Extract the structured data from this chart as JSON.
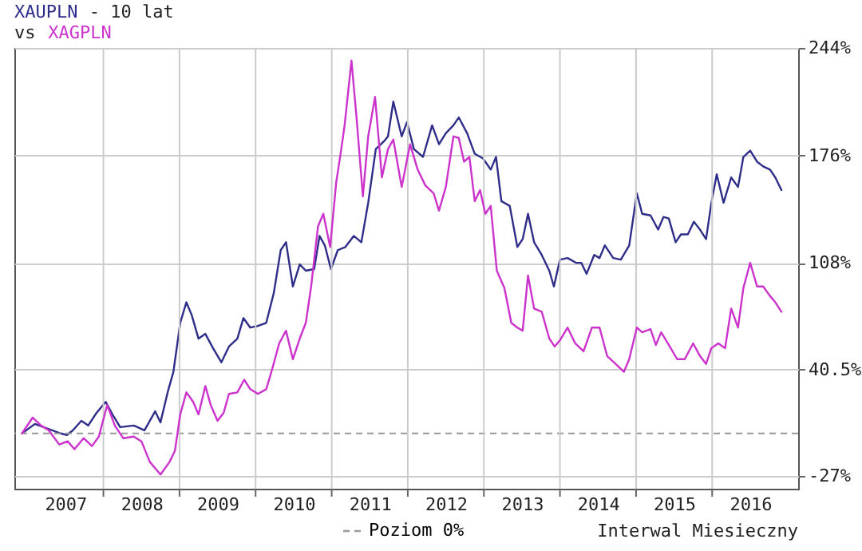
{
  "chart_data": {
    "type": "line",
    "title": "- 10 lat",
    "subtitle": "vs",
    "annotations": [
      "Interwal Miesieczny"
    ],
    "xlim": [
      2006.83,
      2017.13
    ],
    "xticks": [
      {
        "value": 2007.5,
        "label": "2007"
      },
      {
        "value": 2008,
        "label": null
      },
      {
        "value": 2008.5,
        "label": "2008"
      },
      {
        "value": 2009,
        "label": null
      },
      {
        "value": 2009.5,
        "label": "2009"
      },
      {
        "value": 2010,
        "label": null
      },
      {
        "value": 2010.5,
        "label": "2010"
      },
      {
        "value": 2011,
        "label": null
      },
      {
        "value": 2011.5,
        "label": "2011"
      },
      {
        "value": 2012,
        "label": null
      },
      {
        "value": 2012.5,
        "label": "2012"
      },
      {
        "value": 2013,
        "label": null
      },
      {
        "value": 2013.5,
        "label": "2013"
      },
      {
        "value": 2014,
        "label": null
      },
      {
        "value": 2014.5,
        "label": "2014"
      },
      {
        "value": 2015,
        "label": null
      },
      {
        "value": 2015.5,
        "label": "2015"
      },
      {
        "value": 2016,
        "label": null
      },
      {
        "value": 2016.5,
        "label": "2016"
      }
    ],
    "ylim": [
      -35,
      244
    ],
    "yticks": [
      {
        "value": -27,
        "label": "-27%"
      },
      {
        "value": 40.5,
        "label": "40.5%"
      },
      {
        "value": 108,
        "label": "108%"
      },
      {
        "value": 176,
        "label": "176%"
      },
      {
        "value": 244,
        "label": "244%"
      }
    ],
    "grid": true,
    "legend": "bottom",
    "ref_lines": [
      {
        "axis": "y",
        "value": 0,
        "label": "Poziom 0%",
        "color": "#999999",
        "line_style": "dashed"
      }
    ],
    "series": [
      {
        "name": "XAUPLN",
        "color": "#2e2e8a",
        "x": [
          2006.93,
          2007.1,
          2007.27,
          2007.44,
          2007.52,
          2007.6,
          2007.71,
          2007.8,
          2007.91,
          2008.03,
          2008.12,
          2008.22,
          2008.4,
          2008.54,
          2008.68,
          2008.75,
          2008.85,
          2008.92,
          2009.01,
          2009.09,
          2009.16,
          2009.25,
          2009.34,
          2009.44,
          2009.55,
          2009.65,
          2009.76,
          2009.84,
          2009.93,
          2010.03,
          2010.14,
          2010.24,
          2010.33,
          2010.4,
          2010.49,
          2010.58,
          2010.66,
          2010.77,
          2010.84,
          2010.91,
          2010.99,
          2011.08,
          2011.18,
          2011.29,
          2011.39,
          2011.48,
          2011.58,
          2011.69,
          2011.74,
          2011.81,
          2011.92,
          2011.99,
          2012.08,
          2012.2,
          2012.32,
          2012.41,
          2012.5,
          2012.6,
          2012.67,
          2012.78,
          2012.88,
          2012.99,
          2013.09,
          2013.16,
          2013.23,
          2013.34,
          2013.44,
          2013.51,
          2013.58,
          2013.66,
          2013.76,
          2013.86,
          2013.92,
          2014.0,
          2014.1,
          2014.21,
          2014.28,
          2014.35,
          2014.45,
          2014.52,
          2014.59,
          2014.7,
          2014.8,
          2014.91,
          2015.01,
          2015.08,
          2015.19,
          2015.29,
          2015.36,
          2015.43,
          2015.52,
          2015.59,
          2015.68,
          2015.76,
          2015.84,
          2015.92,
          2015.99,
          2016.06,
          2016.15,
          2016.25,
          2016.34,
          2016.41,
          2016.5,
          2016.59,
          2016.67,
          2016.76,
          2016.83,
          2016.91
        ],
        "values": [
          0,
          6,
          3,
          0,
          -1,
          2,
          8,
          5,
          13,
          20,
          12,
          4,
          5,
          2,
          14,
          7,
          27,
          39,
          70,
          83,
          75,
          60,
          63,
          54,
          45,
          55,
          60,
          73,
          67,
          68,
          70,
          89,
          116,
          121,
          93,
          107,
          103,
          104,
          125,
          119,
          104,
          116,
          118,
          125,
          121,
          146,
          180,
          185,
          188,
          210,
          188,
          197,
          180,
          175,
          195,
          183,
          190,
          195,
          200,
          190,
          177,
          174,
          167,
          175,
          147,
          144,
          118,
          123,
          139,
          121,
          113,
          103,
          93,
          110,
          111,
          108,
          108,
          101,
          113,
          111,
          119,
          111,
          110,
          119,
          152,
          139,
          138,
          129,
          137,
          136,
          121,
          126,
          126,
          134,
          129,
          123,
          146,
          164,
          146,
          162,
          156,
          175,
          179,
          172,
          169,
          167,
          162,
          154
        ]
      },
      {
        "name": "XAGPLN",
        "color": "#cc33cc",
        "x": [
          2006.93,
          2007.07,
          2007.18,
          2007.28,
          2007.42,
          2007.53,
          2007.62,
          2007.74,
          2007.85,
          2007.94,
          2008.05,
          2008.15,
          2008.26,
          2008.4,
          2008.5,
          2008.61,
          2008.75,
          2008.87,
          2008.94,
          2009.01,
          2009.09,
          2009.18,
          2009.25,
          2009.34,
          2009.41,
          2009.5,
          2009.58,
          2009.65,
          2009.76,
          2009.85,
          2009.93,
          2010.03,
          2010.14,
          2010.22,
          2010.31,
          2010.4,
          2010.49,
          2010.58,
          2010.66,
          2010.73,
          2010.82,
          2010.89,
          2010.98,
          2011.06,
          2011.12,
          2011.17,
          2011.26,
          2011.33,
          2011.41,
          2011.48,
          2011.57,
          2011.66,
          2011.74,
          2011.81,
          2011.92,
          2012.03,
          2012.13,
          2012.23,
          2012.34,
          2012.41,
          2012.5,
          2012.6,
          2012.67,
          2012.74,
          2012.81,
          2012.88,
          2012.95,
          2013.02,
          2013.09,
          2013.17,
          2013.27,
          2013.36,
          2013.44,
          2013.51,
          2013.58,
          2013.66,
          2013.76,
          2013.86,
          2013.93,
          2014.0,
          2014.1,
          2014.2,
          2014.31,
          2014.42,
          2014.52,
          2014.62,
          2014.73,
          2014.84,
          2014.91,
          2015.01,
          2015.08,
          2015.19,
          2015.26,
          2015.33,
          2015.43,
          2015.54,
          2015.64,
          2015.75,
          2015.84,
          2015.92,
          2015.99,
          2016.08,
          2016.17,
          2016.25,
          2016.34,
          2016.41,
          2016.5,
          2016.59,
          2016.67,
          2016.76,
          2016.83,
          2016.91
        ],
        "values": [
          0,
          10,
          5,
          2,
          -7,
          -5,
          -10,
          -3,
          -8,
          -2,
          18,
          5,
          -3,
          -2,
          -5,
          -18,
          -26,
          -18,
          -11,
          12,
          26,
          20,
          12,
          30,
          18,
          8,
          13,
          25,
          26,
          34,
          28,
          25,
          28,
          41,
          57,
          65,
          47,
          60,
          70,
          93,
          131,
          139,
          118,
          159,
          178,
          195,
          236,
          198,
          150,
          188,
          213,
          162,
          180,
          186,
          156,
          183,
          167,
          157,
          152,
          141,
          156,
          188,
          187,
          172,
          175,
          147,
          154,
          139,
          144,
          103,
          92,
          70,
          67,
          65,
          100,
          79,
          77,
          60,
          55,
          59,
          67,
          57,
          52,
          67,
          67,
          49,
          44,
          39,
          47,
          67,
          64,
          66,
          56,
          64,
          56,
          47,
          47,
          57,
          49,
          44,
          54,
          57,
          54,
          79,
          67,
          92,
          108,
          93,
          93,
          87,
          83,
          77
        ]
      }
    ]
  }
}
